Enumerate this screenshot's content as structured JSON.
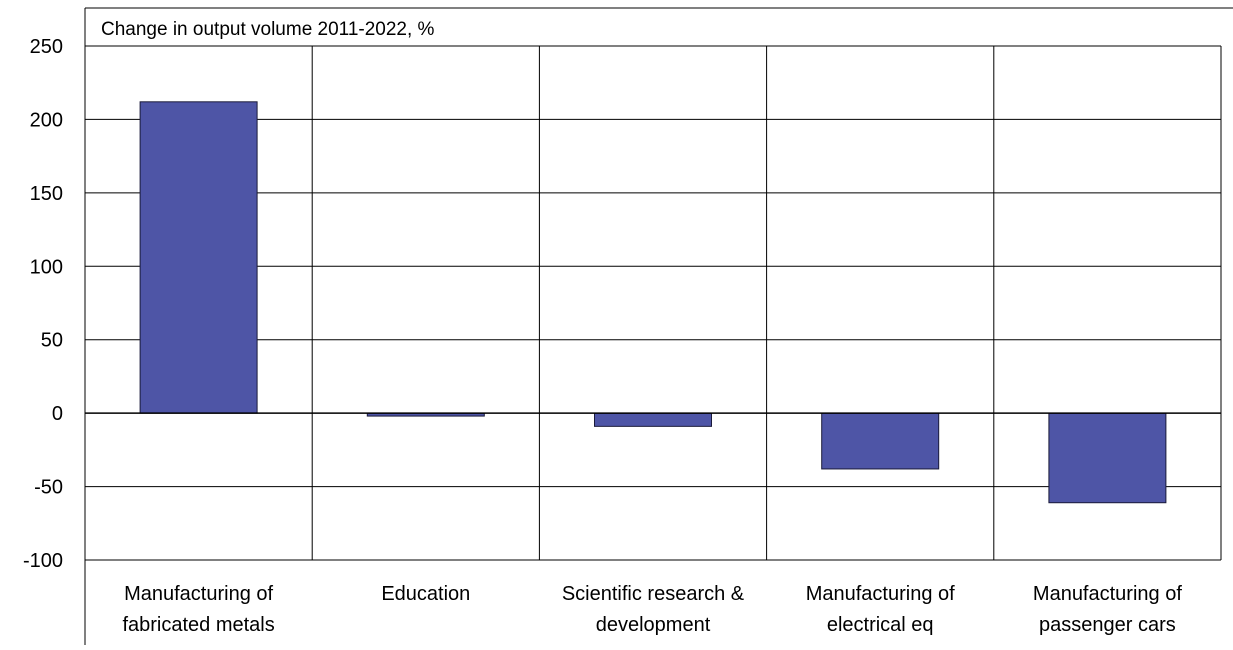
{
  "chart_data": {
    "type": "bar",
    "title": "Change in output volume 2011-2022, %",
    "xlabel": "",
    "ylabel": "",
    "categories": [
      [
        "Manufacturing of",
        "fabricated metals"
      ],
      [
        "Education"
      ],
      [
        "Scientific research &",
        "development"
      ],
      [
        "Manufacturing of",
        "electrical eq"
      ],
      [
        "Manufacturing of",
        "passenger cars"
      ]
    ],
    "values": [
      212,
      -2,
      -9,
      -38,
      -61
    ],
    "ylim": [
      -100,
      250
    ],
    "yticks": [
      "250",
      "200",
      "150",
      "100",
      "50",
      "0",
      "-50",
      "-100"
    ],
    "grid": true,
    "legend": "none",
    "bar_color": "#4E55A6"
  }
}
